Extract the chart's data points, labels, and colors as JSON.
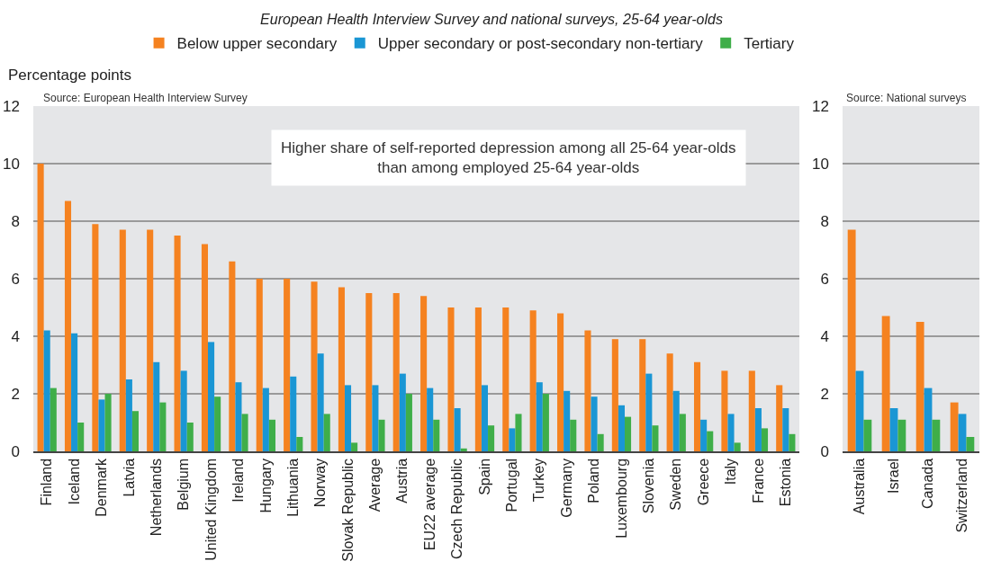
{
  "chart_data": [
    {
      "type": "bar",
      "title": "European Health Interview Survey and national surveys, 25-64 year-olds",
      "ylabel": "Percentage points",
      "annotations": [
        "Source: European Health Interview Survey",
        "Higher share of self-reported depression among all 25-64 year-olds\nthan among employed 25-64 year-olds"
      ],
      "categories": [
        "Finland",
        "Iceland",
        "Denmark",
        "Latvia",
        "Netherlands",
        "Belgium",
        "United Kingdom",
        "Ireland",
        "Hungary",
        "Lithuania",
        "Norway",
        "Slovak Republic",
        "Average",
        "Austria",
        "EU22 average",
        "Czech Republic",
        "Spain",
        "Portugal",
        "Turkey",
        "Germany",
        "Poland",
        "Luxembourg",
        "Slovenia",
        "Sweden",
        "Greece",
        "Italy",
        "France",
        "Estonia"
      ],
      "series": [
        {
          "name": "Below upper secondary",
          "color": "#f58220",
          "values": [
            10.0,
            8.7,
            7.9,
            7.7,
            7.7,
            7.5,
            7.2,
            6.6,
            6.0,
            6.0,
            5.9,
            5.7,
            5.5,
            5.5,
            5.4,
            5.0,
            5.0,
            5.0,
            4.9,
            4.8,
            4.2,
            3.9,
            3.9,
            3.4,
            3.1,
            2.8,
            2.8,
            2.3
          ]
        },
        {
          "name": "Upper secondary or post-secondary non-tertiary",
          "color": "#1a96d4",
          "values": [
            4.2,
            4.1,
            1.8,
            2.5,
            3.1,
            2.8,
            3.8,
            2.4,
            2.2,
            2.6,
            3.4,
            2.3,
            2.3,
            2.7,
            2.2,
            1.5,
            2.3,
            0.8,
            2.4,
            2.1,
            1.9,
            1.6,
            2.7,
            2.1,
            1.1,
            1.3,
            1.5,
            1.5
          ]
        },
        {
          "name": "Tertiary",
          "color": "#3fae49",
          "values": [
            2.2,
            1.0,
            2.0,
            1.4,
            1.7,
            1.0,
            1.9,
            1.3,
            1.1,
            0.5,
            1.3,
            0.3,
            1.1,
            2.0,
            1.1,
            0.1,
            0.9,
            1.3,
            2.0,
            1.1,
            0.6,
            1.2,
            0.9,
            1.3,
            0.7,
            0.3,
            0.8,
            0.6
          ]
        }
      ],
      "ylim": [
        0,
        12
      ],
      "yticks": [
        0,
        2,
        4,
        6,
        8,
        10,
        12
      ],
      "grid": "y",
      "legend": "top"
    },
    {
      "type": "bar",
      "annotations": [
        "Source: National surveys"
      ],
      "categories": [
        "Australia",
        "Israel",
        "Canada",
        "Switzerland"
      ],
      "series": [
        {
          "color": "#f58220",
          "values": [
            7.7,
            4.7,
            4.5,
            1.7
          ]
        },
        {
          "color": "#1a96d4",
          "values": [
            2.8,
            1.5,
            2.2,
            1.3
          ]
        },
        {
          "color": "#3fae49",
          "values": [
            1.1,
            1.1,
            1.1,
            0.5
          ]
        }
      ],
      "ylim": [
        0,
        12
      ],
      "yticks": [
        0,
        2,
        4,
        6,
        8,
        10,
        12
      ],
      "grid": "y"
    }
  ]
}
